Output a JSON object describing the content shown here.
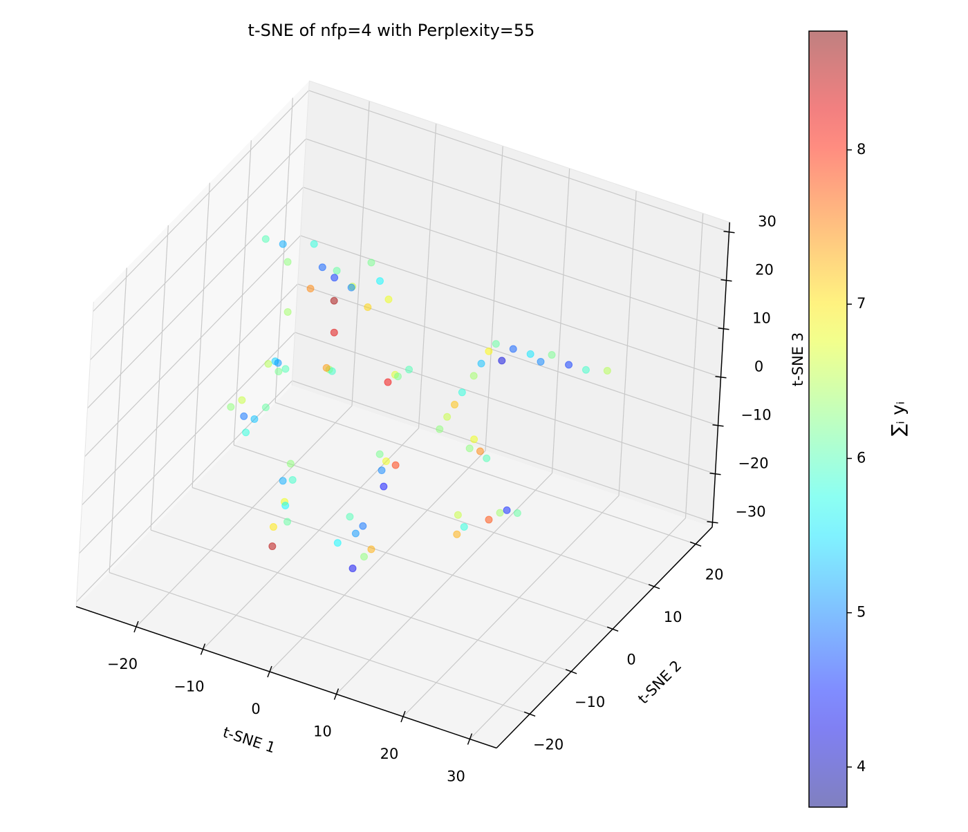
{
  "chart_data": {
    "type": "scatter3d",
    "title": "t-SNE of nfp=4 with Perplexity=55",
    "xlabel": "t-SNE 1",
    "ylabel": "t-SNE 2",
    "zlabel": "t-SNE 3",
    "colorbar_label": "∑ᵢ yᵢ",
    "colormap": "jet",
    "alpha": 0.5,
    "xlim": [
      -29,
      34
    ],
    "ylim": [
      -28,
      24
    ],
    "zlim": [
      -31,
      32
    ],
    "clim": [
      3.74,
      8.77
    ],
    "xticks": [
      {
        "value": -20,
        "label": "−20"
      },
      {
        "value": -10,
        "label": "−10"
      },
      0,
      10,
      20,
      30
    ],
    "yticks": [
      {
        "value": -20,
        "label": "−20"
      },
      {
        "value": -10,
        "label": "−10"
      },
      0,
      10,
      20
    ],
    "zticks": [
      {
        "value": -30,
        "label": "−30"
      },
      {
        "value": -20,
        "label": "−20"
      },
      {
        "value": -10,
        "label": "−10"
      },
      0,
      10,
      20,
      30
    ],
    "cticks": [
      4,
      5,
      6,
      7,
      8
    ],
    "grid": true,
    "x": [
      -18,
      -16,
      -14,
      -12,
      -11,
      -10,
      -9,
      -8,
      -7,
      -6,
      -5,
      -4,
      -3,
      -2,
      0,
      -13,
      -6,
      -15,
      -14,
      -16,
      -14,
      -15,
      -20,
      -18,
      -17,
      -19,
      -17,
      -16,
      -11,
      -10,
      -12,
      -3,
      -2,
      -4,
      -1,
      -9,
      -10,
      -9,
      -10,
      -11,
      -11,
      -9,
      -8,
      0,
      -2,
      1,
      2,
      -1,
      3,
      1,
      0,
      1,
      2,
      1,
      3,
      4,
      5,
      6,
      7,
      8,
      9,
      10,
      11,
      13,
      15,
      17,
      19,
      21,
      23,
      12,
      16,
      8,
      9,
      10,
      8,
      13,
      14,
      15,
      12,
      8,
      8,
      9
    ],
    "y": [
      -4,
      -3,
      -5,
      -2,
      -4,
      -3,
      -1,
      -3,
      -5,
      -2,
      -4,
      -1,
      -3,
      -2,
      -3,
      -6,
      -6,
      -5,
      -4,
      -5,
      -6,
      -4,
      -7,
      -7,
      -6,
      -6,
      -8,
      -5,
      2,
      1,
      3,
      5,
      4,
      5,
      5,
      -10,
      -10,
      -11,
      -9,
      -10,
      -10,
      -10,
      -11,
      -8,
      -9,
      -8,
      -9,
      -8,
      -9,
      -10,
      -3,
      -4,
      -5,
      -3,
      -4,
      5,
      5,
      5,
      5,
      6,
      6,
      6,
      6,
      7,
      8,
      10,
      11,
      12,
      14,
      6,
      9,
      6,
      7,
      7,
      7,
      6,
      6,
      7,
      5,
      4,
      4,
      4
    ],
    "z": [
      29,
      28,
      27,
      29,
      22,
      26,
      24,
      20,
      27,
      23,
      25,
      28,
      21,
      26,
      24,
      18,
      17,
      6,
      4,
      5,
      7,
      3,
      -4,
      -5,
      -6,
      -3,
      -7,
      -4,
      0,
      1,
      -1,
      0,
      1,
      -2,
      2,
      -8,
      -12,
      -15,
      -18,
      -22,
      -26,
      -20,
      -10,
      -20,
      -22,
      -18,
      -23,
      -17,
      -21,
      -25,
      -8,
      -10,
      -12,
      -9,
      -8,
      -8,
      -5,
      -2,
      1,
      4,
      7,
      10,
      12,
      11,
      10,
      9,
      7,
      6,
      5,
      9,
      8,
      -11,
      -12,
      -13,
      -10,
      -22,
      -21,
      -22,
      -23,
      -23,
      -27,
      -25
    ],
    "c": [
      6.0,
      5.2,
      6.3,
      5.8,
      7.5,
      4.8,
      6.1,
      8.6,
      4.6,
      6.6,
      5.0,
      6.2,
      7.1,
      5.6,
      6.8,
      6.4,
      8.3,
      5.4,
      6.0,
      6.5,
      5.1,
      6.2,
      6.3,
      4.9,
      5.3,
      6.6,
      5.8,
      6.1,
      6.4,
      5.9,
      7.4,
      6.7,
      6.2,
      8.2,
      6.0,
      6.3,
      5.2,
      6.8,
      5.6,
      7.0,
      8.5,
      6.1,
      5.9,
      5.1,
      5.6,
      4.9,
      6.3,
      6.0,
      7.3,
      4.3,
      6.2,
      5.0,
      4.4,
      6.8,
      7.9,
      6.3,
      6.6,
      7.2,
      5.8,
      6.4,
      5.3,
      6.9,
      6.1,
      4.8,
      5.5,
      6.2,
      4.6,
      5.9,
      6.5,
      4.2,
      5.0,
      6.3,
      7.5,
      6.0,
      6.8,
      6.4,
      4.5,
      6.1,
      7.8,
      6.6,
      7.3,
      5.8
    ]
  }
}
